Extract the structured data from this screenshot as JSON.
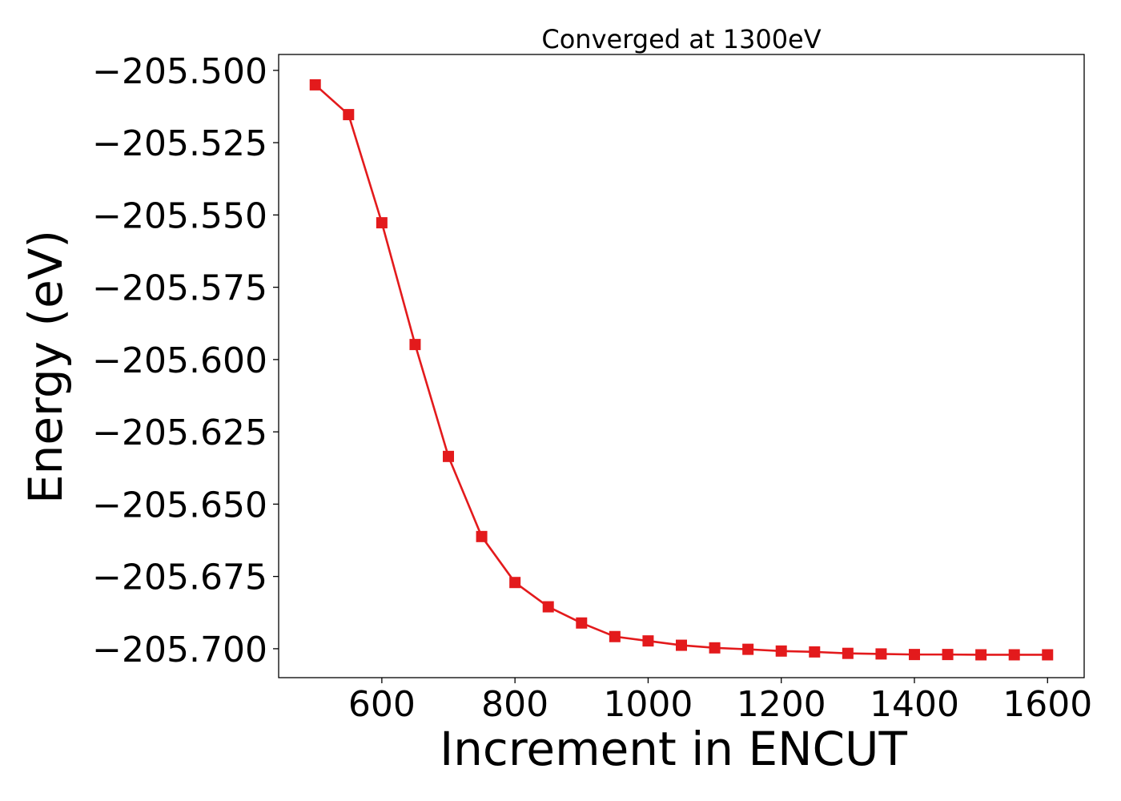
{
  "chart_data": {
    "type": "line",
    "title": "Converged at 1300eV",
    "xlabel": "Increment in ENCUT",
    "ylabel": "Energy (eV)",
    "xlim": [
      445,
      1655
    ],
    "ylim": [
      -205.71,
      -205.4945
    ],
    "xticks": [
      600,
      800,
      1000,
      1200,
      1400,
      1600
    ],
    "yticks": [
      -205.5,
      -205.525,
      -205.55,
      -205.575,
      -205.6,
      -205.625,
      -205.65,
      -205.675,
      -205.7
    ],
    "ytick_labels": [
      "−205.500",
      "−205.525",
      "−205.550",
      "−205.575",
      "−205.600",
      "−205.625",
      "−205.650",
      "−205.675",
      "−205.700"
    ],
    "grid": false,
    "legend": "none",
    "series": [
      {
        "color": "#e31a1c",
        "marker": "square",
        "x": [
          500,
          550,
          600,
          650,
          700,
          750,
          800,
          850,
          900,
          950,
          1000,
          1050,
          1100,
          1150,
          1200,
          1250,
          1300,
          1350,
          1400,
          1450,
          1500,
          1550,
          1600
        ],
        "y": [
          -205.505,
          -205.5153,
          -205.5527,
          -205.5948,
          -205.6335,
          -205.6612,
          -205.6771,
          -205.6855,
          -205.6911,
          -205.6958,
          -205.6973,
          -205.6988,
          -205.6997,
          -205.7002,
          -205.7008,
          -205.7011,
          -205.7016,
          -205.7018,
          -205.702,
          -205.702,
          -205.7021,
          -205.7021,
          -205.7021
        ]
      }
    ]
  }
}
